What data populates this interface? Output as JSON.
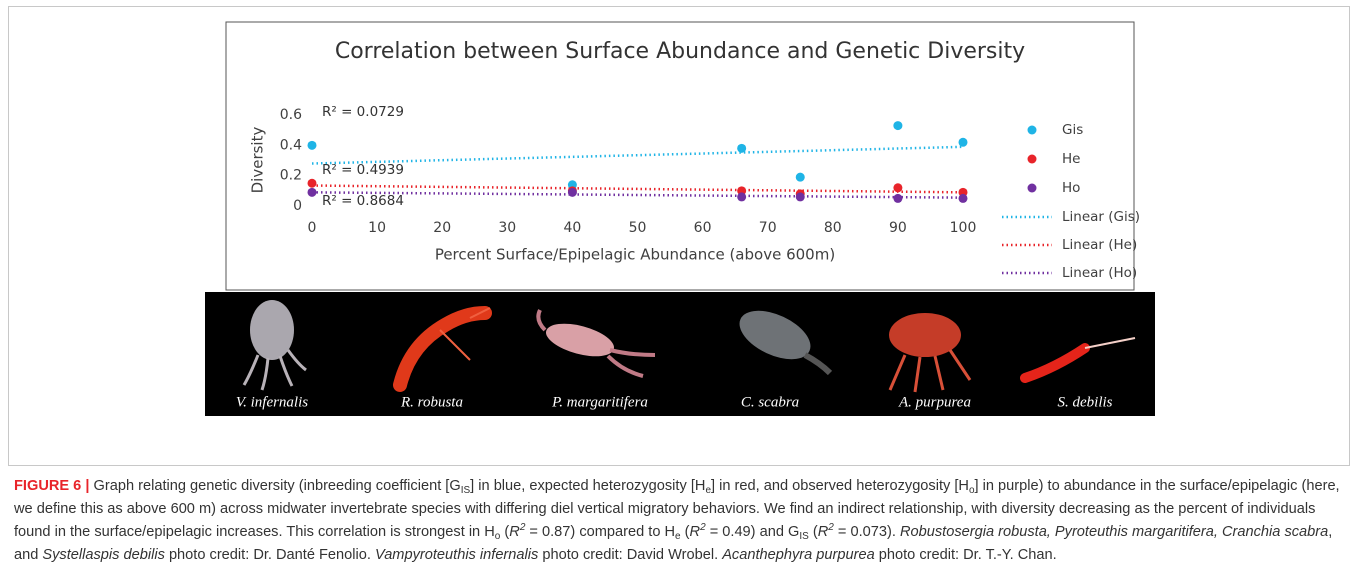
{
  "chart_data": {
    "type": "scatter",
    "title": "Correlation between Surface Abundance and Genetic Diversity",
    "x_label": "Percent Surface/Epipelagic Abundance (above 600m)",
    "y_label": "Diversity",
    "xlim": [
      0,
      100
    ],
    "xticks": [
      0,
      10,
      20,
      30,
      40,
      50,
      60,
      70,
      80,
      90,
      100
    ],
    "ylim": [
      0,
      0.6
    ],
    "yticks": [
      0,
      0.2,
      0.4,
      0.6
    ],
    "x": [
      0,
      40,
      66,
      75,
      90,
      100
    ],
    "series": [
      {
        "name": "Gis",
        "color": "#1fb4e6",
        "values": [
          0.4,
          0.14,
          0.38,
          0.19,
          0.53,
          0.42
        ]
      },
      {
        "name": "He",
        "color": "#e8242a",
        "values": [
          0.15,
          0.1,
          0.1,
          0.08,
          0.12,
          0.09
        ]
      },
      {
        "name": "Ho",
        "color": "#7030a0",
        "values": [
          0.09,
          0.09,
          0.06,
          0.06,
          0.05,
          0.05
        ]
      }
    ],
    "trendlines": [
      {
        "name": "Linear (Gis)",
        "color": "#1fb4e6",
        "x": [
          0,
          100
        ],
        "values": [
          0.28,
          0.39
        ],
        "annotation": "R² = 0.0729"
      },
      {
        "name": "Linear (He)",
        "color": "#e8242a",
        "x": [
          0,
          100
        ],
        "values": [
          0.135,
          0.09
        ],
        "annotation": "R² = 0.4939"
      },
      {
        "name": "Linear (Ho)",
        "color": "#7030a0",
        "x": [
          0,
          100
        ],
        "values": [
          0.09,
          0.055
        ],
        "annotation": "R² = 0.8684"
      }
    ]
  },
  "photos": {
    "labels": [
      "V. infernalis",
      "R. robusta",
      "P. margaritifera",
      "C. scabra",
      "A. purpurea",
      "S. debilis"
    ]
  },
  "caption": {
    "runs": [
      {
        "text": "FIGURE 6 |",
        "style": "bold"
      },
      {
        "text": " Graph relating genetic diversity (inbreeding coefficient [G",
        "style": "plain"
      },
      {
        "text": "IS",
        "style": "sub"
      },
      {
        "text": "] in blue, expected heterozygosity [H",
        "style": "plain"
      },
      {
        "text": "e",
        "style": "sub"
      },
      {
        "text": "] in red, and observed heterozygosity [H",
        "style": "plain"
      },
      {
        "text": "o",
        "style": "sub"
      },
      {
        "text": "] in purple) to abundance in the surface/epipelagic (here, we define this as above 600 m) across midwater invertebrate species with differing diel vertical migratory behaviors. We find an indirect relationship, with diversity decreasing as the percent of individuals found in the surface/epipelagic increases. This correlation is strongest in H",
        "style": "plain"
      },
      {
        "text": "o",
        "style": "sub"
      },
      {
        "text": " (",
        "style": "plain"
      },
      {
        "text": "R",
        "style": "italic"
      },
      {
        "text": "2",
        "style": "sup"
      },
      {
        "text": " = 0.87) compared to H",
        "style": "plain"
      },
      {
        "text": "e",
        "style": "sub"
      },
      {
        "text": " (",
        "style": "plain"
      },
      {
        "text": "R",
        "style": "italic"
      },
      {
        "text": "2",
        "style": "sup"
      },
      {
        "text": " = 0.49) and G",
        "style": "plain"
      },
      {
        "text": "IS",
        "style": "sub"
      },
      {
        "text": " (",
        "style": "plain"
      },
      {
        "text": "R",
        "style": "italic"
      },
      {
        "text": "2",
        "style": "sup"
      },
      {
        "text": " = 0.073). ",
        "style": "plain"
      },
      {
        "text": "Robustosergia robusta, Pyroteuthis margaritifera, Cranchia scabra",
        "style": "italic"
      },
      {
        "text": ", and ",
        "style": "plain"
      },
      {
        "text": "Systellaspis debilis",
        "style": "italic"
      },
      {
        "text": " photo credit: Dr. Danté Fenolio. ",
        "style": "plain"
      },
      {
        "text": "Vampyroteuthis infernalis",
        "style": "italic"
      },
      {
        "text": " photo credit: David Wrobel. ",
        "style": "plain"
      },
      {
        "text": "Acanthephyra purpurea",
        "style": "italic"
      },
      {
        "text": " photo credit: Dr. T.-Y. Chan.",
        "style": "plain"
      }
    ]
  }
}
